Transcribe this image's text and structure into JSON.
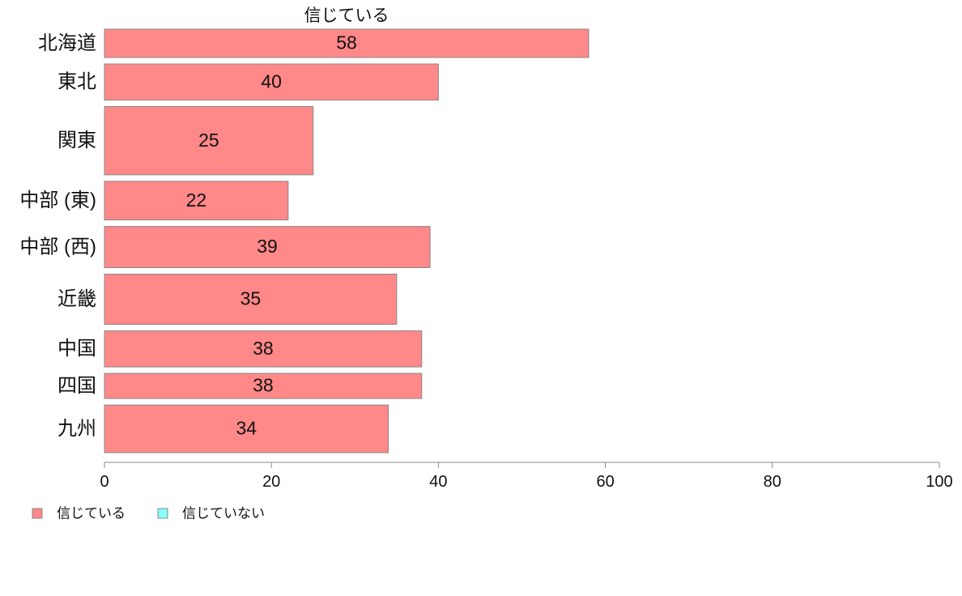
{
  "chart_data": {
    "type": "bar",
    "orientation": "horizontal",
    "title": "信じている",
    "categories": [
      "北海道",
      "東北",
      "関東",
      "中部 (東)",
      "中部 (西)",
      "近畿",
      "中国",
      "四国",
      "九州"
    ],
    "category_weights": [
      0.88,
      1.12,
      2.12,
      1.2,
      1.28,
      1.56,
      1.12,
      0.78,
      1.48
    ],
    "series": [
      {
        "name": "信じている",
        "color": "#ff8888",
        "values": [
          58,
          40,
          25,
          22,
          39,
          35,
          38,
          38,
          34
        ],
        "labels": [
          "58",
          "40",
          "25",
          "22",
          "39",
          "35",
          "38",
          "38",
          "34"
        ]
      }
    ],
    "xlim": [
      0,
      100
    ],
    "xticks": [
      0,
      20,
      40,
      60,
      80,
      100
    ],
    "xtick_labels": [
      "0",
      "20",
      "40",
      "60",
      "80",
      "100"
    ],
    "grid": false,
    "legend_position": "bottom-left",
    "legend": [
      {
        "label": "信じている",
        "color": "#ff8888"
      },
      {
        "label": "信じていない",
        "color": "#88ffff"
      }
    ]
  }
}
